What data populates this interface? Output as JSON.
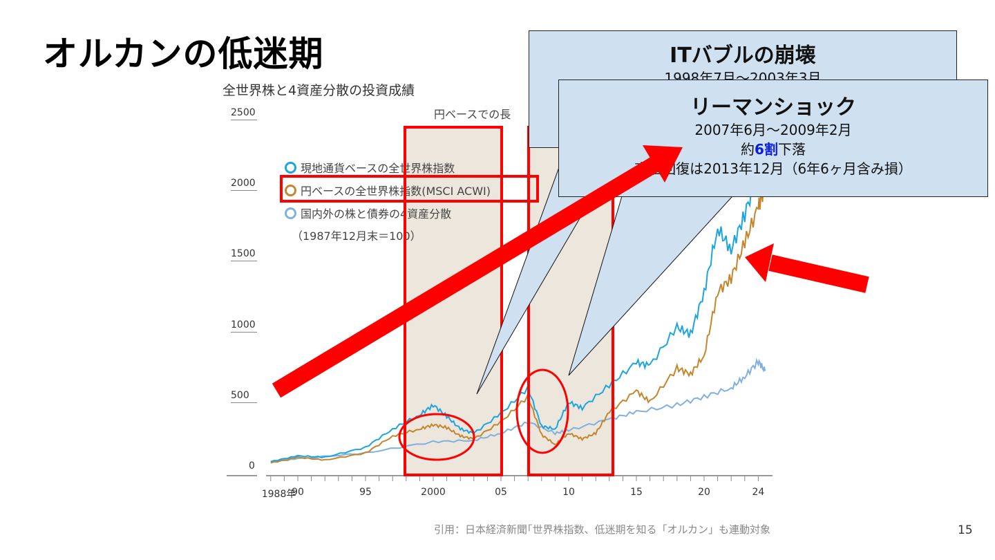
{
  "slide": {
    "title": "オルカンの低迷期",
    "page_number": "15",
    "citation": "引用：日本経済新聞｢世界株指数、低迷期を知る「オルカン」も連動対象"
  },
  "callouts": [
    {
      "heading": "ITバブルの崩壊",
      "line1": "1998年7月～2003年3月"
    },
    {
      "heading": "リーマンショック",
      "line1": "2007年6月～2009年2月",
      "line2_pre": "約",
      "line2_em": "6割",
      "line2_post": "下落",
      "line3": "高値回復は2013年12月（6年6ヶ月含み損）"
    }
  ],
  "colors": {
    "local": "#1ca5dd",
    "yen": "#c4862c",
    "four": "#7fb0e0",
    "highlight": "#ff0000",
    "shade": "#ece6dc",
    "callout": "#cfe0f1"
  },
  "chart_data": {
    "type": "line",
    "title": "全世界株と4資産分散の投資成績",
    "top_annotation": "円ベースでの長",
    "note": "（1987年12月末＝100）",
    "ylim": [
      0,
      2500
    ],
    "yticks": [
      "0",
      "500",
      "1000",
      "1500",
      "2000",
      "2500"
    ],
    "xlim": [
      1987.5,
      2024.8
    ],
    "xticks": [
      {
        "v": 1988.6,
        "label": "1988年"
      },
      {
        "v": 1990,
        "label": "90"
      },
      {
        "v": 1995,
        "label": "95"
      },
      {
        "v": 2000,
        "label": "2000"
      },
      {
        "v": 2005,
        "label": "05"
      },
      {
        "v": 2010,
        "label": "10"
      },
      {
        "v": 2015,
        "label": "15"
      },
      {
        "v": 2020,
        "label": "20"
      },
      {
        "v": 2024,
        "label": "24"
      }
    ],
    "shaded_periods": [
      [
        1998.0,
        2005.0
      ],
      [
        2007.0,
        2013.3
      ]
    ],
    "series": [
      {
        "name": "現地通貨ベースの全世界株指数",
        "x": [
          1988,
          1990,
          1992,
          1995,
          1997,
          1999,
          2000,
          2001,
          2002,
          2003,
          2005,
          2007,
          2008,
          2009,
          2010,
          2011,
          2013,
          2015,
          2016,
          2018,
          2019,
          2020,
          2021,
          2022,
          2023,
          2024,
          2024.5
        ],
        "values": [
          100,
          140,
          130,
          200,
          330,
          430,
          500,
          420,
          330,
          300,
          440,
          620,
          350,
          330,
          520,
          480,
          640,
          800,
          780,
          1050,
          1000,
          1300,
          1750,
          1600,
          1850,
          2150,
          2200
        ]
      },
      {
        "name": "円ベースの全世界株指数(MSCI ACWI)",
        "x": [
          1988,
          1990,
          1992,
          1995,
          1997,
          1999,
          2000,
          2001,
          2002,
          2003,
          2005,
          2007,
          2008,
          2009,
          2010,
          2011,
          2012,
          2013,
          2015,
          2016,
          2018,
          2019,
          2020,
          2021,
          2022,
          2023,
          2024,
          2024.5
        ],
        "values": [
          90,
          130,
          110,
          160,
          280,
          330,
          360,
          340,
          280,
          260,
          380,
          560,
          290,
          220,
          300,
          260,
          300,
          450,
          600,
          520,
          760,
          720,
          850,
          1300,
          1400,
          1650,
          1900,
          2050
        ]
      },
      {
        "name": "国内外の株と債券の4資産分散",
        "x": [
          1988,
          1990,
          1995,
          2000,
          2003,
          2005,
          2007,
          2009,
          2010,
          2013,
          2015,
          2018,
          2020,
          2022,
          2023,
          2024,
          2024.5
        ],
        "values": [
          95,
          120,
          160,
          240,
          250,
          300,
          380,
          300,
          320,
          400,
          450,
          500,
          560,
          620,
          700,
          810,
          740
        ]
      }
    ]
  }
}
